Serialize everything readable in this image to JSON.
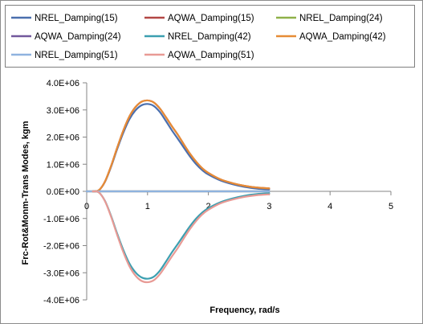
{
  "chart_data": {
    "type": "line",
    "xlabel": "Frequency, rad/s",
    "ylabel": "Frc-Rot&Monm-Trans Modes, kgm",
    "xlim": [
      0,
      5
    ],
    "ylim": [
      -4000000,
      4000000
    ],
    "x_ticks": [
      "0",
      "1",
      "2",
      "3",
      "4",
      "5"
    ],
    "y_ticks": [
      "4.0E+06",
      "3.0E+06",
      "2.0E+06",
      "1.0E+06",
      "0.0E+00",
      "-1.0E+06",
      "-2.0E+06",
      "-3.0E+06",
      "-4.0E+06"
    ],
    "y_tick_values": [
      4000000,
      3000000,
      2000000,
      1000000,
      0,
      -1000000,
      -2000000,
      -3000000,
      -4000000
    ],
    "grid": false,
    "legend_position": "top",
    "series": [
      {
        "name": "NREL_Damping(15)",
        "color": "#4a6fae",
        "x": [
          0.1,
          0.2,
          0.3,
          0.4,
          0.5,
          0.6,
          0.7,
          0.8,
          0.9,
          1.0,
          1.1,
          1.2,
          1.3,
          1.4,
          1.5,
          1.6,
          1.7,
          1.8,
          1.9,
          2.0,
          2.2,
          2.4,
          2.6,
          2.8,
          3.0
        ],
        "y": [
          0,
          40000,
          350000,
          900000,
          1550000,
          2150000,
          2650000,
          2980000,
          3170000,
          3220000,
          3150000,
          2930000,
          2600000,
          2250000,
          1930000,
          1600000,
          1280000,
          1000000,
          780000,
          620000,
          400000,
          260000,
          160000,
          100000,
          70000
        ]
      },
      {
        "name": "AQWA_Damping(15)",
        "color": "#b34744",
        "x": [
          0.1,
          0.2,
          0.3,
          0.4,
          0.5,
          0.6,
          0.7,
          0.8,
          0.9,
          1.0,
          1.1,
          1.2,
          1.3,
          1.4,
          1.5,
          1.6,
          1.7,
          1.8,
          1.9,
          2.0,
          2.2,
          2.4,
          2.6,
          2.8,
          3.0
        ],
        "y": [
          0,
          40000,
          360000,
          930000,
          1600000,
          2230000,
          2750000,
          3100000,
          3300000,
          3350000,
          3280000,
          3060000,
          2740000,
          2400000,
          2080000,
          1720000,
          1380000,
          1090000,
          850000,
          680000,
          440000,
          300000,
          200000,
          140000,
          110000
        ]
      },
      {
        "name": "NREL_Damping(24)",
        "color": "#8fb149",
        "x": [
          0,
          0.5,
          1.0,
          1.5,
          2.0,
          2.5,
          3.0
        ],
        "y": [
          0,
          0,
          0,
          0,
          0,
          0,
          0
        ]
      },
      {
        "name": "AQWA_Damping(24)",
        "color": "#72589c",
        "x": [
          0,
          0.5,
          1.0,
          1.5,
          2.0,
          2.5,
          3.0
        ],
        "y": [
          0,
          0,
          0,
          0,
          0,
          0,
          0
        ]
      },
      {
        "name": "NREL_Damping(42)",
        "color": "#3c9fb0",
        "x": [
          0.1,
          0.2,
          0.3,
          0.4,
          0.5,
          0.6,
          0.7,
          0.8,
          0.9,
          1.0,
          1.1,
          1.2,
          1.3,
          1.4,
          1.5,
          1.6,
          1.7,
          1.8,
          1.9,
          2.0,
          2.2,
          2.4,
          2.6,
          2.8,
          3.0
        ],
        "y": [
          0,
          -40000,
          -350000,
          -900000,
          -1550000,
          -2150000,
          -2650000,
          -2980000,
          -3170000,
          -3220000,
          -3150000,
          -2930000,
          -2600000,
          -2250000,
          -1930000,
          -1600000,
          -1280000,
          -1000000,
          -780000,
          -620000,
          -400000,
          -260000,
          -160000,
          -100000,
          -70000
        ]
      },
      {
        "name": "AQWA_Damping(42)",
        "color": "#e68c36",
        "x": [
          0.1,
          0.2,
          0.3,
          0.4,
          0.5,
          0.6,
          0.7,
          0.8,
          0.9,
          1.0,
          1.1,
          1.2,
          1.3,
          1.4,
          1.5,
          1.6,
          1.7,
          1.8,
          1.9,
          2.0,
          2.2,
          2.4,
          2.6,
          2.8,
          3.0
        ],
        "y": [
          0,
          40000,
          360000,
          930000,
          1600000,
          2230000,
          2750000,
          3100000,
          3300000,
          3350000,
          3280000,
          3060000,
          2740000,
          2400000,
          2080000,
          1720000,
          1380000,
          1090000,
          850000,
          680000,
          440000,
          300000,
          200000,
          140000,
          110000
        ]
      },
      {
        "name": "NREL_Damping(51)",
        "color": "#8fb3df",
        "x": [
          0,
          0.5,
          1.0,
          1.5,
          2.0,
          2.5,
          3.0
        ],
        "y": [
          0,
          0,
          0,
          0,
          0,
          0,
          0
        ]
      },
      {
        "name": "AQWA_Damping(51)",
        "color": "#e89a95",
        "x": [
          0.1,
          0.2,
          0.3,
          0.4,
          0.5,
          0.6,
          0.7,
          0.8,
          0.9,
          1.0,
          1.1,
          1.2,
          1.3,
          1.4,
          1.5,
          1.6,
          1.7,
          1.8,
          1.9,
          2.0,
          2.2,
          2.4,
          2.6,
          2.8,
          3.0
        ],
        "y": [
          0,
          -40000,
          -360000,
          -930000,
          -1600000,
          -2230000,
          -2750000,
          -3100000,
          -3300000,
          -3350000,
          -3280000,
          -3060000,
          -2740000,
          -2400000,
          -2080000,
          -1720000,
          -1380000,
          -1090000,
          -850000,
          -680000,
          -440000,
          -300000,
          -200000,
          -140000,
          -110000
        ]
      }
    ]
  }
}
